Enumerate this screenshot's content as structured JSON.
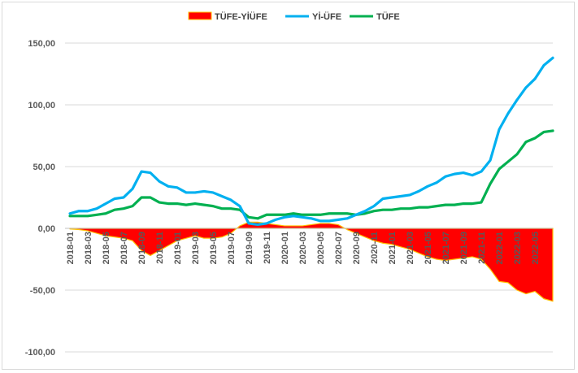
{
  "chart_data": {
    "type": "line",
    "x": [
      "2018-01",
      "2018-02",
      "2018-03",
      "2018-04",
      "2018-05",
      "2018-06",
      "2018-07",
      "2018-08",
      "2018-09",
      "2018-10",
      "2018-11",
      "2018-12",
      "2019-01",
      "2019-02",
      "2019-03",
      "2019-04",
      "2019-05",
      "2019-06",
      "2019-07",
      "2019-08",
      "2019-09",
      "2019-10",
      "2019-11",
      "2019-12",
      "2020-01",
      "2020-02",
      "2020-03",
      "2020-04",
      "2020-05",
      "2020-06",
      "2020-07",
      "2020-08",
      "2020-09",
      "2020-10",
      "2020-11",
      "2020-12",
      "2021-01",
      "2021-02",
      "2021-03",
      "2021-04",
      "2021-05",
      "2021-06",
      "2021-07",
      "2021-08",
      "2021-09",
      "2021-10",
      "2021-11",
      "2021-12",
      "2022-01",
      "2022-02",
      "2022-03",
      "2022-04",
      "2022-05",
      "2022-06",
      "2022-07"
    ],
    "x_tick_labels": [
      "2018-01",
      "2018-03",
      "2018-05",
      "2018-07",
      "2018-09",
      "2018-11",
      "2019-01",
      "2019-03",
      "2019-05",
      "2019-07",
      "2019-09",
      "2019-11",
      "2020-01",
      "2020-03",
      "2020-05",
      "2020-07",
      "2020-09",
      "2020-11",
      "2021-01",
      "2021-03",
      "2021-05",
      "2021-07",
      "2021-09",
      "2021-11",
      "2022-01",
      "2022-03",
      "2022-05"
    ],
    "ylim": [
      -100,
      150
    ],
    "y_ticks": [
      "-100,00",
      "-50,00",
      "0,00",
      "50,00",
      "100,00",
      "150,00"
    ],
    "y_tick_values": [
      -100,
      -50,
      0,
      50,
      100,
      150
    ],
    "grid": true,
    "legend_position": "top",
    "series": [
      {
        "name": "TÜFE-YİÜFE",
        "kind": "area",
        "color": "#ff0000",
        "edge_color": "#ffc000",
        "values": [
          -0.5,
          -1,
          -2,
          -4,
          -6,
          -7,
          -8,
          -10,
          -18,
          -22,
          -18,
          -14,
          -10,
          -8,
          -6,
          -8,
          -8,
          -7,
          -4,
          2,
          5,
          5,
          4,
          3,
          2,
          2,
          2,
          3,
          4,
          4,
          3,
          -1,
          -4,
          -7,
          -10,
          -12,
          -13,
          -15,
          -17,
          -20,
          -23,
          -25,
          -26,
          -25,
          -24,
          -23,
          -25,
          -33,
          -43,
          -44,
          -50,
          -53,
          -51,
          -57,
          -59
        ]
      },
      {
        "name": "Yİ-ÜFE",
        "kind": "line",
        "color": "#00b0f0",
        "values": [
          12,
          14,
          14,
          16,
          20,
          24,
          25,
          32,
          46,
          45,
          38,
          34,
          33,
          29,
          29,
          30,
          29,
          26,
          23,
          18,
          4,
          3,
          4,
          7,
          9,
          10,
          9,
          8,
          6,
          6,
          7,
          8,
          11,
          14,
          18,
          24,
          25,
          26,
          27,
          30,
          34,
          37,
          42,
          44,
          45,
          43,
          46,
          55,
          80,
          93,
          104,
          114,
          121,
          132,
          138
        ]
      },
      {
        "name": "TÜFE",
        "kind": "line",
        "color": "#00b050",
        "values": [
          10,
          10,
          10,
          11,
          12,
          15,
          16,
          18,
          25,
          25,
          21,
          20,
          20,
          19,
          20,
          19,
          18,
          16,
          16,
          15,
          9,
          8,
          11,
          11,
          11,
          12,
          11,
          11,
          11,
          12,
          12,
          12,
          11,
          12,
          14,
          15,
          15,
          16,
          16,
          17,
          17,
          18,
          19,
          19,
          20,
          20,
          21,
          36,
          48,
          54,
          60,
          70,
          73,
          78,
          79
        ]
      }
    ]
  }
}
